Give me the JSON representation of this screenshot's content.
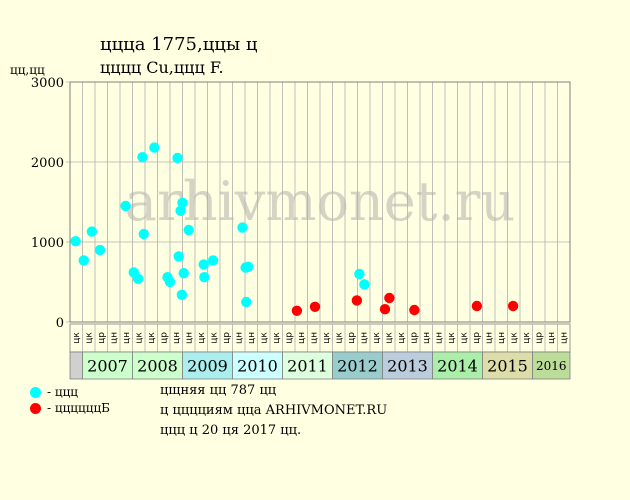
{
  "header": {
    "title": "ццца 1775,ццы ц",
    "subtitle": "цццц Cu,ццц F.",
    "y_unit": "цц,цц"
  },
  "watermark": "arhivmonet.ru",
  "legend": [
    {
      "label": "- ццц",
      "color": "#00FFFF"
    },
    {
      "label": "- ццццццБ",
      "color": "#FF0000"
    }
  ],
  "notes": [
    "цщняя цц 787 цц",
    "ц цццциям ццa ARHIVMONET.RU",
    "ццц ц 20 ця 2017 цц."
  ],
  "colors": {
    "background": "#FFFFE1",
    "grid": "#B0B0B0",
    "series_a": "#00FFFF",
    "series_b": "#FF0000"
  },
  "chart_data": {
    "type": "scatter",
    "ylim": [
      0,
      3000
    ],
    "yticks": [
      0,
      1000,
      2000,
      3000
    ],
    "x_slots": 40,
    "x_slot_labels": [
      "цк",
      "цк",
      "цр",
      "цн",
      "цн",
      "цк",
      "цк",
      "цр",
      "цн",
      "цн",
      "цк",
      "цк",
      "цр",
      "цн",
      "цн",
      "цк",
      "цк",
      "цр",
      "цн",
      "цн",
      "цк",
      "цк",
      "цр",
      "цн",
      "цк",
      "цк",
      "цк",
      "цр",
      "цн",
      "цн",
      "цк",
      "цк",
      "цр",
      "цн",
      "цн",
      "цк",
      "цк",
      "цр",
      "цн",
      "цн"
    ],
    "years": [
      {
        "label": "",
        "start": 0,
        "end": 1,
        "color": "#D0D0D0"
      },
      {
        "label": "2007",
        "start": 1,
        "end": 5,
        "color": "#CCFFCC"
      },
      {
        "label": "2008",
        "start": 5,
        "end": 9,
        "color": "#CCFFCC"
      },
      {
        "label": "2009",
        "start": 9,
        "end": 13,
        "color": "#AAEEEE"
      },
      {
        "label": "2010",
        "start": 13,
        "end": 17,
        "color": "#CCFFFF"
      },
      {
        "label": "2011",
        "start": 17,
        "end": 21,
        "color": "#DDFFDD"
      },
      {
        "label": "2012",
        "start": 21,
        "end": 25,
        "color": "#99CCCC"
      },
      {
        "label": "2013",
        "start": 25,
        "end": 29,
        "color": "#BBCCDD"
      },
      {
        "label": "2014",
        "start": 29,
        "end": 33,
        "color": "#AAEEAA"
      },
      {
        "label": "2015",
        "start": 33,
        "end": 37,
        "color": "#DDDDAA"
      },
      {
        "label": "2016",
        "start": 37,
        "end": 40,
        "color": "#BBDD99"
      }
    ],
    "series": [
      {
        "color": "#00FFFF",
        "points": [
          [
            0.45,
            1010
          ],
          [
            1.1,
            770
          ],
          [
            1.75,
            1130
          ],
          [
            2.4,
            900
          ],
          [
            4.45,
            1450
          ],
          [
            5.1,
            620
          ],
          [
            5.45,
            540
          ],
          [
            5.8,
            2060
          ],
          [
            5.9,
            1100
          ],
          [
            6.75,
            2180
          ],
          [
            7.8,
            560
          ],
          [
            8.0,
            500
          ],
          [
            8.6,
            2050
          ],
          [
            8.7,
            820
          ],
          [
            8.85,
            1390
          ],
          [
            9.0,
            1490
          ],
          [
            8.95,
            340
          ],
          [
            9.1,
            610
          ],
          [
            9.5,
            1150
          ],
          [
            10.7,
            720
          ],
          [
            10.75,
            560
          ],
          [
            11.45,
            770
          ],
          [
            13.8,
            1180
          ],
          [
            14.05,
            680
          ],
          [
            14.1,
            250
          ],
          [
            14.25,
            690
          ],
          [
            23.15,
            600
          ],
          [
            23.55,
            470
          ]
        ]
      },
      {
        "color": "#FF0000",
        "points": [
          [
            18.15,
            140
          ],
          [
            19.6,
            190
          ],
          [
            22.95,
            270
          ],
          [
            25.2,
            160
          ],
          [
            25.55,
            300
          ],
          [
            27.55,
            150
          ],
          [
            32.55,
            200
          ],
          [
            35.45,
            200
          ]
        ]
      }
    ]
  }
}
